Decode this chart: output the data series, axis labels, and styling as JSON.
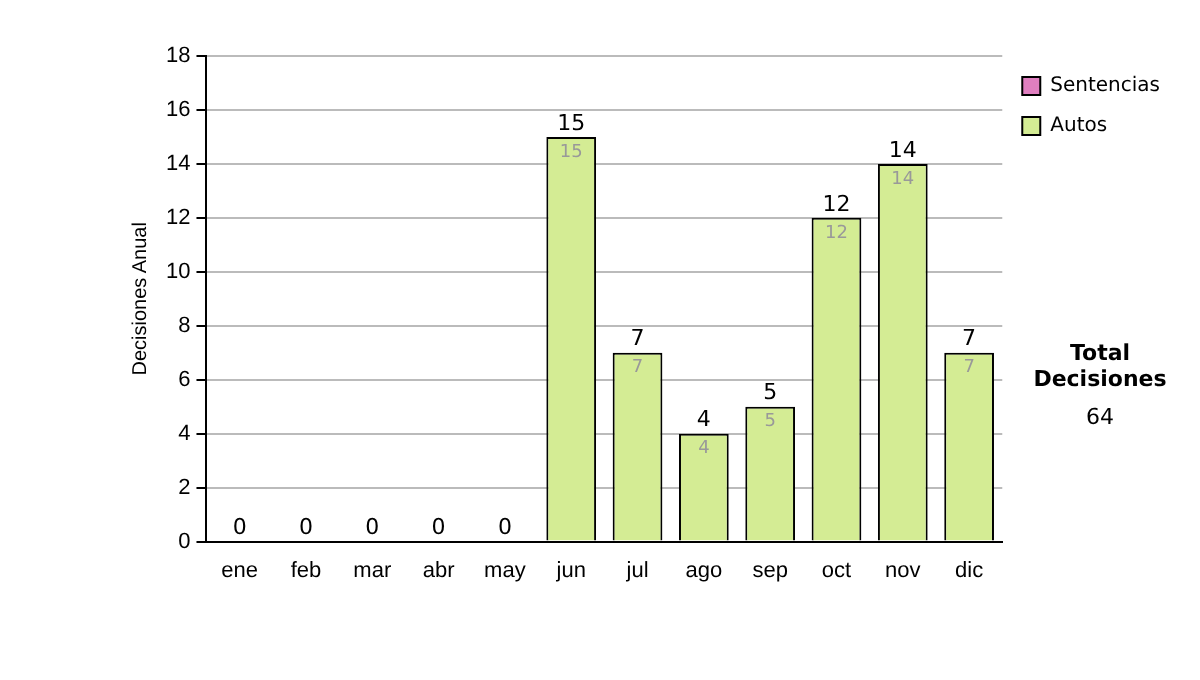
{
  "chart_data": {
    "type": "bar",
    "stacked": true,
    "ylabel": "Decisiones Anual",
    "categories": [
      "ene",
      "feb",
      "mar",
      "abr",
      "may",
      "jun",
      "jul",
      "ago",
      "sep",
      "oct",
      "nov",
      "dic"
    ],
    "series": [
      {
        "name": "Sentencias",
        "color": "#e07fc0",
        "values": [
          0,
          0,
          0,
          0,
          0,
          0,
          0,
          0,
          0,
          0,
          0,
          0
        ]
      },
      {
        "name": "Autos",
        "color": "#d4ec94",
        "values": [
          0,
          0,
          0,
          0,
          0,
          15,
          7,
          4,
          5,
          12,
          14,
          7
        ],
        "value_labels": [
          null,
          null,
          null,
          null,
          null,
          "15",
          "7",
          "4",
          "5",
          "12",
          "14",
          "7"
        ]
      }
    ],
    "totals": [
      "0",
      "0",
      "0",
      "0",
      "0",
      "15",
      "7",
      "4",
      "5",
      "12",
      "14",
      "7"
    ],
    "ylim": [
      0,
      18
    ],
    "yticks": [
      0,
      2,
      4,
      6,
      8,
      10,
      12,
      14,
      16,
      18
    ],
    "grid": "y",
    "legend": "right",
    "annotations": [
      "Total Decisiones",
      "64"
    ]
  }
}
